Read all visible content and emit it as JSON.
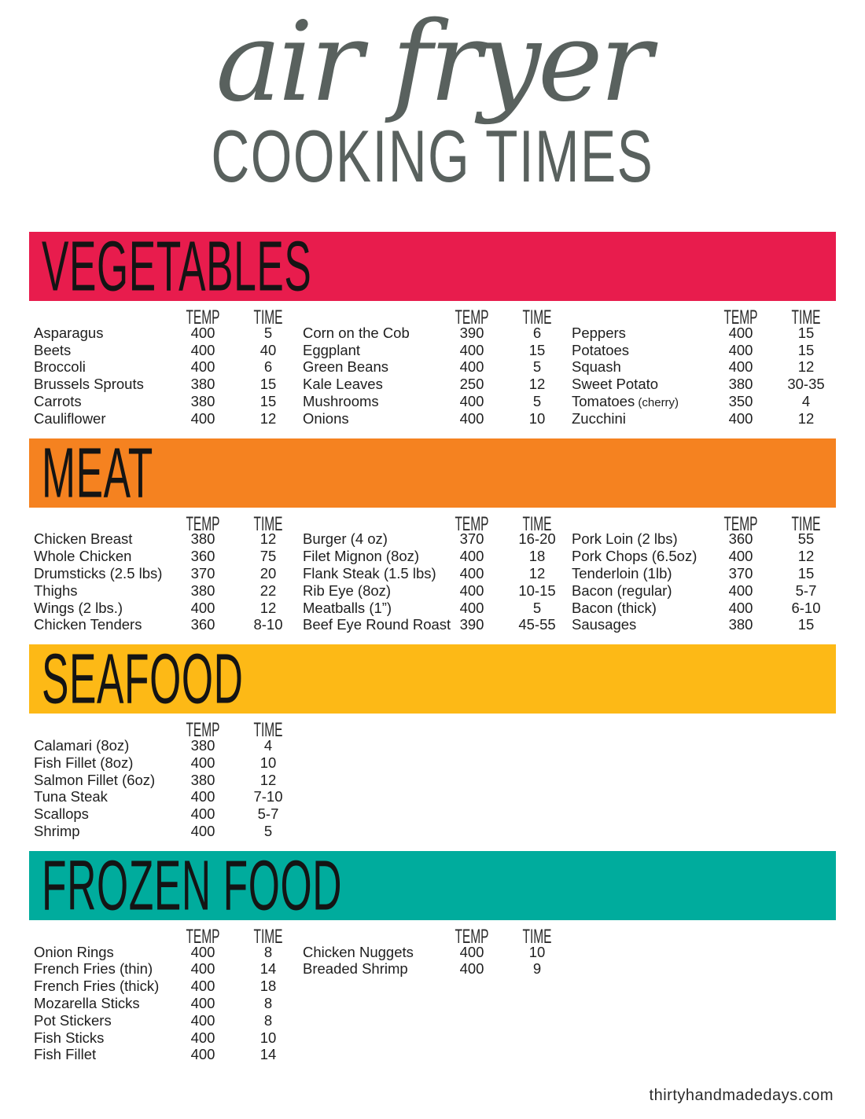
{
  "title": {
    "script": "air fryer",
    "block": "COOKING TIMES"
  },
  "table_headers": {
    "temp": "TEMP",
    "time": "TIME"
  },
  "footer": {
    "site": "thirtyhandmadedays.com"
  },
  "colors": {
    "vegetables": "#e81c4d",
    "meat": "#f58220",
    "seafood": "#fdb916",
    "frozen_food": "#00ac9d",
    "title_gray": "#59615e"
  },
  "sections": [
    {
      "name": "VEGETABLES",
      "slug": "vegetables",
      "color": "#e81c4d",
      "columns": [
        {
          "rows": [
            [
              "Asparagus",
              "400",
              "5"
            ],
            [
              "Beets",
              "400",
              "40"
            ],
            [
              "Broccoli",
              "400",
              "6"
            ],
            [
              "Brussels Sprouts",
              "380",
              "15"
            ],
            [
              "Carrots",
              "380",
              "15"
            ],
            [
              "Cauliflower",
              "400",
              "12"
            ]
          ]
        },
        {
          "rows": [
            [
              "Corn on the Cob",
              "390",
              "6"
            ],
            [
              "Eggplant",
              "400",
              "15"
            ],
            [
              "Green Beans",
              "400",
              "5"
            ],
            [
              "Kale Leaves",
              "250",
              "12"
            ],
            [
              "Mushrooms",
              "400",
              "5"
            ],
            [
              "Onions",
              "400",
              "10"
            ]
          ]
        },
        {
          "rows": [
            [
              "Peppers",
              "400",
              "15"
            ],
            [
              "Potatoes",
              "400",
              "15"
            ],
            [
              "Squash",
              "400",
              "12"
            ],
            [
              "Sweet Potato",
              "380",
              "30-35"
            ],
            [
              "Tomatoes",
              "350",
              "4",
              "(cherry)"
            ],
            [
              "Zucchini",
              "400",
              "12"
            ]
          ]
        }
      ]
    },
    {
      "name": "MEAT",
      "slug": "meat",
      "color": "#f58220",
      "columns": [
        {
          "rows": [
            [
              "Chicken Breast",
              "380",
              "12"
            ],
            [
              "Whole Chicken",
              "360",
              "75"
            ],
            [
              "Drumsticks (2.5 lbs)",
              "370",
              "20"
            ],
            [
              "Thighs",
              "380",
              "22"
            ],
            [
              "Wings (2 lbs.)",
              "400",
              "12"
            ],
            [
              "Chicken Tenders",
              "360",
              "8-10"
            ]
          ]
        },
        {
          "rows": [
            [
              "Burger (4 oz)",
              "370",
              "16-20"
            ],
            [
              "Filet Mignon (8oz)",
              "400",
              "18"
            ],
            [
              "Flank Steak (1.5 lbs)",
              "400",
              "12"
            ],
            [
              "Rib Eye (8oz)",
              "400",
              "10-15"
            ],
            [
              "Meatballs (1”)",
              "400",
              "5"
            ],
            [
              "Beef Eye Round Roast",
              "390",
              "45-55"
            ]
          ]
        },
        {
          "rows": [
            [
              "Pork Loin (2 lbs)",
              "360",
              "55"
            ],
            [
              "Pork Chops (6.5oz)",
              "400",
              "12"
            ],
            [
              "Tenderloin (1lb)",
              "370",
              "15"
            ],
            [
              "Bacon (regular)",
              "400",
              "5-7"
            ],
            [
              "Bacon (thick)",
              "400",
              "6-10"
            ],
            [
              "Sausages",
              "380",
              "15"
            ]
          ]
        }
      ]
    },
    {
      "name": "SEAFOOD",
      "slug": "seafood",
      "color": "#fdb916",
      "columns": [
        {
          "rows": [
            [
              "Calamari (8oz)",
              "380",
              "4"
            ],
            [
              "Fish Fillet (8oz)",
              "400",
              "10"
            ],
            [
              "Salmon Fillet (6oz)",
              "380",
              "12"
            ],
            [
              "Tuna Steak",
              "400",
              "7-10"
            ],
            [
              "Scallops",
              "400",
              "5-7"
            ],
            [
              "Shrimp",
              "400",
              "5"
            ]
          ]
        }
      ]
    },
    {
      "name": "FROZEN FOOD",
      "slug": "frozen-food",
      "color": "#00ac9d",
      "columns": [
        {
          "rows": [
            [
              "Onion Rings",
              "400",
              "8"
            ],
            [
              "French Fries (thin)",
              "400",
              "14"
            ],
            [
              "French Fries (thick)",
              "400",
              "18"
            ],
            [
              "Mozarella Sticks",
              "400",
              "8"
            ],
            [
              "Pot Stickers",
              "400",
              "8"
            ],
            [
              "Fish Sticks",
              "400",
              "10"
            ],
            [
              "Fish Fillet",
              "400",
              "14"
            ]
          ]
        },
        {
          "rows": [
            [
              "Chicken Nuggets",
              "400",
              "10"
            ],
            [
              "Breaded Shrimp",
              "400",
              "9"
            ]
          ]
        }
      ]
    }
  ]
}
